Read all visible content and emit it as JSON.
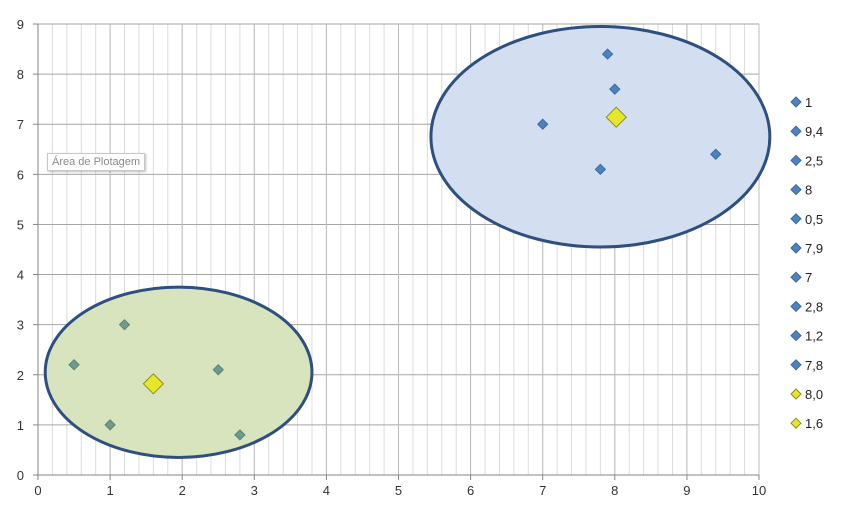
{
  "tooltip": {
    "label": "Área de Plotagem"
  },
  "chart_data": {
    "type": "scatter",
    "title": "",
    "xlabel": "",
    "ylabel": "",
    "xlim": [
      0,
      10
    ],
    "ylim": [
      0,
      9
    ],
    "x_ticks": [
      "0",
      "1",
      "2",
      "3",
      "4",
      "5",
      "6",
      "7",
      "8",
      "9",
      "10"
    ],
    "y_ticks": [
      "0",
      "1",
      "2",
      "3",
      "4",
      "5",
      "6",
      "7",
      "8",
      "9"
    ],
    "grid": true,
    "legend_position": "right",
    "colors": {
      "point": "#4f81bd",
      "centroid": "#e6e62a",
      "cluster_a_fill": "#d3dff0",
      "cluster_b_fill": "#d7e4bd",
      "ellipse_stroke": "#2f4f80",
      "grid": "#a6a6a6"
    },
    "series": [
      {
        "name": "1",
        "x": [
          1.0
        ],
        "y": [
          1.0
        ],
        "marker": "diamond"
      },
      {
        "name": "9,4",
        "x": [
          9.4
        ],
        "y": [
          6.4
        ],
        "marker": "diamond"
      },
      {
        "name": "2,5",
        "x": [
          2.5
        ],
        "y": [
          2.1
        ],
        "marker": "diamond"
      },
      {
        "name": "8",
        "x": [
          8.0
        ],
        "y": [
          7.7
        ],
        "marker": "diamond"
      },
      {
        "name": "0,5",
        "x": [
          0.5
        ],
        "y": [
          2.2
        ],
        "marker": "diamond"
      },
      {
        "name": "7,9",
        "x": [
          7.9
        ],
        "y": [
          8.4
        ],
        "marker": "diamond"
      },
      {
        "name": "7",
        "x": [
          7.0
        ],
        "y": [
          7.0
        ],
        "marker": "diamond"
      },
      {
        "name": "2,8",
        "x": [
          2.8
        ],
        "y": [
          0.8
        ],
        "marker": "diamond"
      },
      {
        "name": "1,2",
        "x": [
          1.2
        ],
        "y": [
          3.0
        ],
        "marker": "diamond"
      },
      {
        "name": "7,8",
        "x": [
          7.8
        ],
        "y": [
          6.1
        ],
        "marker": "diamond"
      },
      {
        "name": "8,0",
        "x": [
          8.02
        ],
        "y": [
          7.14
        ],
        "marker": "diamond-large"
      },
      {
        "name": "1,6",
        "x": [
          1.6
        ],
        "y": [
          1.82
        ],
        "marker": "diamond-large"
      }
    ],
    "clusters": [
      {
        "center": [
          7.8,
          6.75
        ],
        "radius": [
          2.35,
          2.2
        ],
        "fill": "cluster_a_fill"
      },
      {
        "center": [
          1.95,
          2.05
        ],
        "radius": [
          1.85,
          1.7
        ],
        "fill": "cluster_b_fill"
      }
    ]
  }
}
